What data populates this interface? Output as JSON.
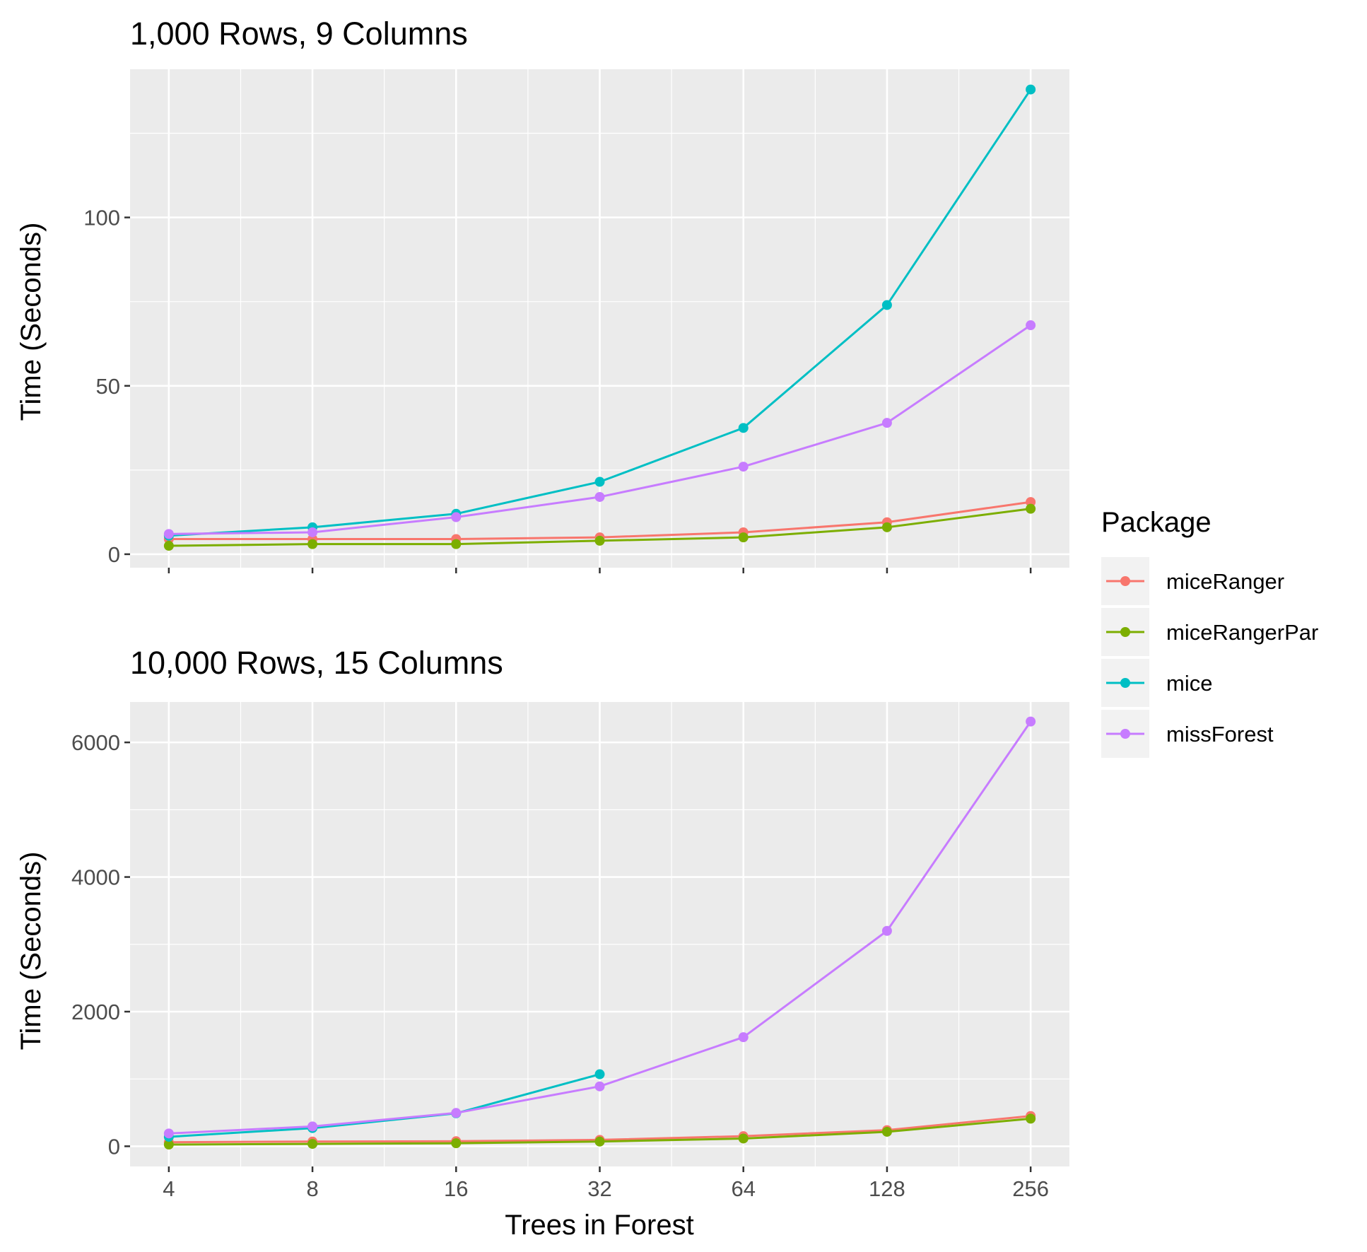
{
  "chart_data": [
    {
      "type": "line",
      "title": "1,000 Rows, 9 Columns",
      "xlabel": "",
      "ylabel": "Time (Seconds)",
      "x_scale": "log2",
      "x": [
        4,
        8,
        16,
        32,
        64,
        128,
        256
      ],
      "x_tick_labels": [
        "4",
        "8",
        "16",
        "32",
        "64",
        "128",
        "256"
      ],
      "y_ticks": [
        0,
        50,
        100
      ],
      "y_tick_labels": [
        "0",
        "50",
        "100"
      ],
      "ylim": [
        -4,
        144
      ],
      "grid": true,
      "series": [
        {
          "name": "miceRanger",
          "color": "#F8766D",
          "values": [
            4.5,
            4.5,
            4.5,
            5,
            6.5,
            9.5,
            15.5
          ]
        },
        {
          "name": "miceRangerPar",
          "color": "#7CAE00",
          "values": [
            2.5,
            3,
            3,
            4,
            5,
            8,
            13.5
          ]
        },
        {
          "name": "mice",
          "color": "#00BFC4",
          "values": [
            5.5,
            8,
            12,
            21.5,
            37.5,
            74,
            138
          ]
        },
        {
          "name": "missForest",
          "color": "#C77CFF",
          "values": [
            6,
            6.5,
            11,
            17,
            26,
            39,
            68
          ]
        }
      ]
    },
    {
      "type": "line",
      "title": "10,000 Rows, 15 Columns",
      "xlabel": "Trees in Forest",
      "ylabel": "Time (Seconds)",
      "x_scale": "log2",
      "x": [
        4,
        8,
        16,
        32,
        64,
        128,
        256
      ],
      "x_tick_labels": [
        "4",
        "8",
        "16",
        "32",
        "64",
        "128",
        "256"
      ],
      "y_ticks": [
        0,
        2000,
        4000,
        6000
      ],
      "y_tick_labels": [
        "0",
        "2000",
        "4000",
        "6000"
      ],
      "ylim": [
        -300,
        6600
      ],
      "grid": true,
      "series": [
        {
          "name": "miceRanger",
          "color": "#F8766D",
          "values": [
            60,
            70,
            75,
            95,
            150,
            240,
            450
          ]
        },
        {
          "name": "miceRangerPar",
          "color": "#7CAE00",
          "values": [
            25,
            35,
            45,
            70,
            115,
            215,
            410
          ]
        },
        {
          "name": "mice",
          "color": "#00BFC4",
          "values": [
            140,
            270,
            490,
            1070,
            null,
            null,
            null
          ]
        },
        {
          "name": "missForest",
          "color": "#C77CFF",
          "values": [
            190,
            295,
            495,
            890,
            1620,
            3200,
            6310
          ]
        }
      ]
    }
  ],
  "legend": {
    "title": "Package",
    "position": "right",
    "items": [
      {
        "label": "miceRanger",
        "color": "#F8766D"
      },
      {
        "label": "miceRangerPar",
        "color": "#7CAE00"
      },
      {
        "label": "mice",
        "color": "#00BFC4"
      },
      {
        "label": "missForest",
        "color": "#C77CFF"
      }
    ]
  }
}
